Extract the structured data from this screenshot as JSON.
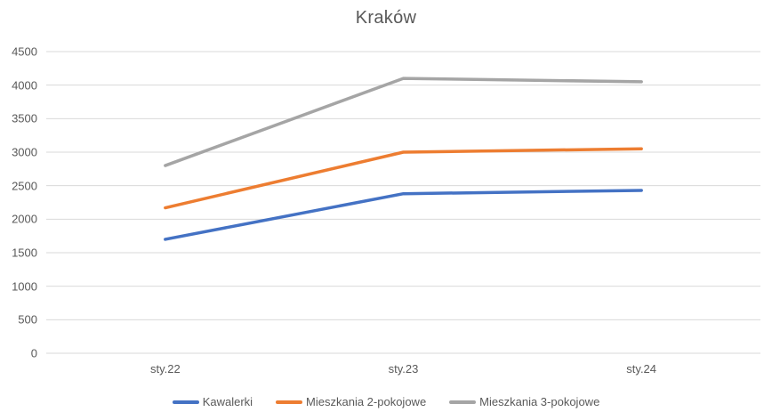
{
  "chart_data": {
    "type": "line",
    "title": "Kraków",
    "categories": [
      "sty.22",
      "sty.23",
      "sty.24"
    ],
    "series": [
      {
        "name": "Kawalerki",
        "color": "#4472C4",
        "values": [
          1700,
          2380,
          2430
        ]
      },
      {
        "name": "Mieszkania 2-pokojowe",
        "color": "#ED7D31",
        "values": [
          2170,
          3000,
          3050
        ]
      },
      {
        "name": "Mieszkania 3-pokojowe",
        "color": "#A5A5A5",
        "values": [
          2800,
          4100,
          4050
        ]
      }
    ],
    "ylim": [
      0,
      4500
    ],
    "ytick_step": 500,
    "ytick_labels": [
      "0",
      "500",
      "1000",
      "1500",
      "2000",
      "2500",
      "3000",
      "3500",
      "4000",
      "4500"
    ],
    "grid": true,
    "legend_position": "bottom",
    "gridline_color": "#D9D9D9",
    "text_color": "#595959",
    "background_color": "#FFFFFF"
  }
}
